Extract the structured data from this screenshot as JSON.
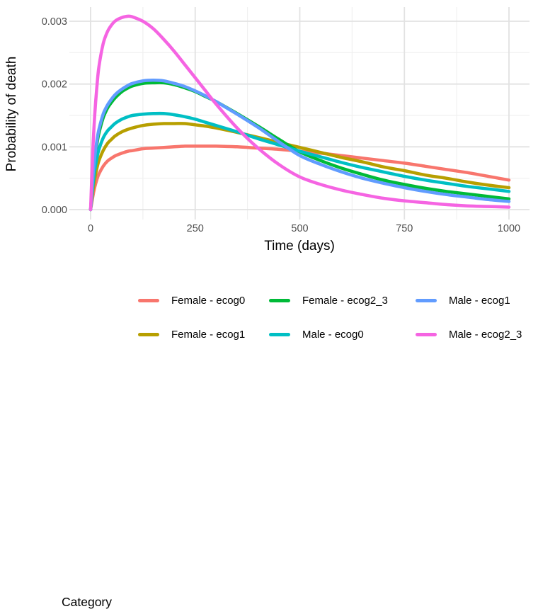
{
  "chart": {
    "y_axis": {
      "title": "Probability of death",
      "tick_labels": [
        "0.000",
        "0.001",
        "0.002",
        "0.003"
      ]
    },
    "x_axis": {
      "title": "Time (days)",
      "tick_labels": [
        "0",
        "250",
        "500",
        "750",
        "1000"
      ]
    },
    "legend": {
      "title": "Category"
    }
  },
  "colors": {
    "background": "#ffffff",
    "grid_major": "#e2e2e2",
    "grid_minor": "#f0f0f0",
    "tick_text": "#4d4d4d",
    "axis_title_text": "#000000"
  },
  "chart_data": {
    "type": "line",
    "title": "",
    "xlabel": "Time (days)",
    "ylabel": "Probability of death",
    "xlim": [
      0,
      1000
    ],
    "ylim": [
      0,
      0.0031
    ],
    "grid": true,
    "legend_position": "bottom",
    "legend_title": "Category",
    "x_ticks": [
      0,
      250,
      500,
      750,
      1000
    ],
    "y_ticks": [
      0,
      0.001,
      0.002,
      0.003
    ],
    "x_tick_labels": [
      "0",
      "250",
      "500",
      "750",
      "1000"
    ],
    "y_tick_labels": [
      "0.000",
      "0.001",
      "0.002",
      "0.003"
    ],
    "x_minor_ticks": [
      125,
      375,
      625,
      875
    ],
    "y_minor_ticks": [
      0.0005,
      0.0015,
      0.0025
    ],
    "x": [
      0,
      5,
      10,
      15,
      20,
      30,
      40,
      50,
      60,
      75,
      90,
      100,
      125,
      150,
      175,
      200,
      225,
      250,
      275,
      300,
      350,
      400,
      450,
      500,
      550,
      600,
      650,
      700,
      750,
      800,
      850,
      900,
      950,
      1000
    ],
    "series": [
      {
        "name": "Female - ecog0",
        "color": "#F8766D",
        "values": [
          0,
          0.0002,
          0.00036,
          0.00048,
          0.00057,
          0.00069,
          0.00077,
          0.00082,
          0.00086,
          0.0009,
          0.00093,
          0.00094,
          0.00097,
          0.00098,
          0.00099,
          0.001,
          0.00101,
          0.00101,
          0.00101,
          0.00101,
          0.001,
          0.00098,
          0.00096,
          0.00093,
          0.0009,
          0.00086,
          0.00082,
          0.00078,
          0.00074,
          0.00069,
          0.00064,
          0.00059,
          0.00053,
          0.00047
        ]
      },
      {
        "name": "Female - ecog1",
        "color": "#B79F00",
        "values": [
          0,
          0.00028,
          0.0005,
          0.00066,
          0.00078,
          0.00094,
          0.00105,
          0.00112,
          0.00118,
          0.00124,
          0.00128,
          0.0013,
          0.00134,
          0.00136,
          0.00137,
          0.00137,
          0.00137,
          0.00135,
          0.00133,
          0.0013,
          0.00123,
          0.00115,
          0.00107,
          0.00099,
          0.00091,
          0.00083,
          0.00076,
          0.00068,
          0.00062,
          0.00055,
          0.0005,
          0.00044,
          0.00039,
          0.00035
        ]
      },
      {
        "name": "Female - ecog2_3",
        "color": "#00BA38",
        "values": [
          0,
          0.00044,
          0.00079,
          0.00104,
          0.00122,
          0.00146,
          0.00161,
          0.00171,
          0.00179,
          0.00188,
          0.00194,
          0.00197,
          0.00201,
          0.00202,
          0.00202,
          0.00199,
          0.00194,
          0.00188,
          0.0018,
          0.00172,
          0.00153,
          0.00133,
          0.00112,
          0.00092,
          0.00078,
          0.00066,
          0.00056,
          0.00047,
          0.0004,
          0.00034,
          0.00029,
          0.00025,
          0.00021,
          0.00017
        ]
      },
      {
        "name": "Male - ecog0",
        "color": "#00BFC4",
        "values": [
          0,
          0.00036,
          0.00063,
          0.00082,
          0.00096,
          0.00114,
          0.00125,
          0.00132,
          0.00138,
          0.00144,
          0.00148,
          0.0015,
          0.00152,
          0.00153,
          0.00153,
          0.00151,
          0.00148,
          0.00144,
          0.00139,
          0.00134,
          0.00124,
          0.00113,
          0.00103,
          0.00093,
          0.00084,
          0.00075,
          0.00067,
          0.0006,
          0.00053,
          0.00047,
          0.00042,
          0.00037,
          0.00033,
          0.00029
        ]
      },
      {
        "name": "Male - ecog1",
        "color": "#619CFF",
        "values": [
          0,
          0.00048,
          0.00085,
          0.0011,
          0.00128,
          0.00152,
          0.00166,
          0.00176,
          0.00184,
          0.00192,
          0.00198,
          0.00201,
          0.00205,
          0.00206,
          0.00205,
          0.00201,
          0.00196,
          0.00189,
          0.00181,
          0.00172,
          0.00152,
          0.00131,
          0.00108,
          0.00086,
          0.00072,
          0.0006,
          0.0005,
          0.00042,
          0.00035,
          0.00029,
          0.00024,
          0.0002,
          0.00016,
          0.00013
        ]
      },
      {
        "name": "Male - ecog2_3",
        "color": "#F564E2",
        "values": [
          0,
          0.0009,
          0.00152,
          0.00196,
          0.00228,
          0.00264,
          0.00283,
          0.00294,
          0.00301,
          0.00306,
          0.00308,
          0.00307,
          0.003,
          0.00288,
          0.00271,
          0.00252,
          0.00231,
          0.0021,
          0.00189,
          0.00168,
          0.0013,
          0.00098,
          0.00072,
          0.00052,
          0.0004,
          0.00031,
          0.00024,
          0.00018,
          0.00014,
          0.00011,
          8e-05,
          6e-05,
          5e-05,
          4e-05
        ]
      }
    ]
  }
}
